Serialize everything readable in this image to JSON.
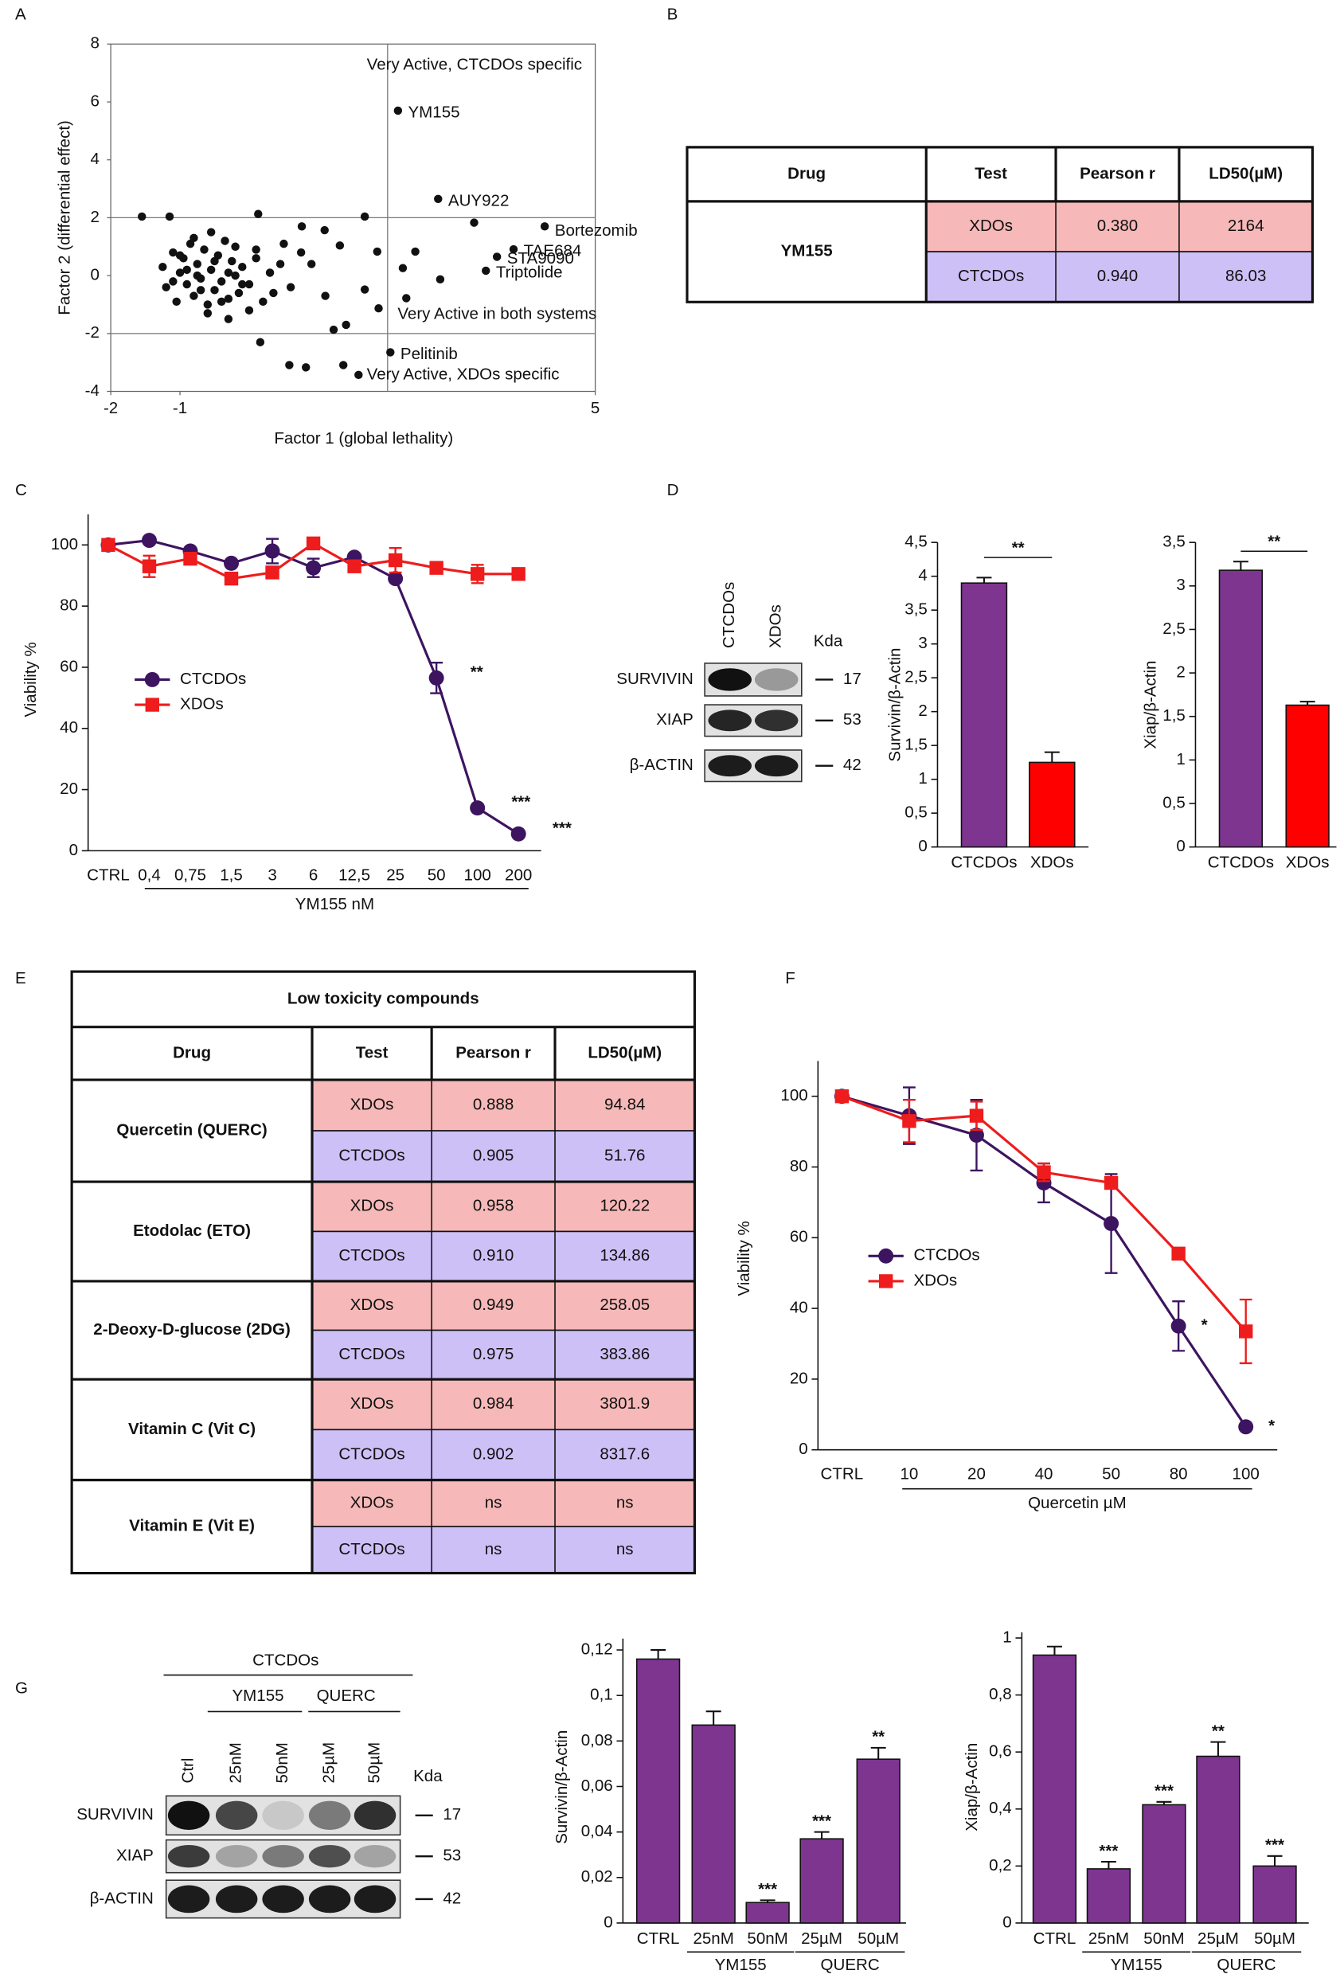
{
  "panel_labels": [
    "A",
    "B",
    "C",
    "D",
    "E",
    "F",
    "G"
  ],
  "chart_data": [
    {
      "type": "scatter",
      "x_label": "Factor 1 (global lethality)",
      "y_label": "Factor 2 (differential effect)",
      "xlim": [
        -2,
        5
      ],
      "ylim": [
        -4,
        8
      ],
      "xticks": [
        -2,
        -1,
        5
      ],
      "yticks": [
        -4,
        -2,
        0,
        2,
        4,
        6,
        8
      ],
      "reference_lines": {
        "x": [
          2
        ],
        "y": [
          -2,
          2
        ]
      },
      "region_labels": [
        "Very Active, CTCDOs specific",
        "Very Active in both systems",
        "Very Active, XDOs specific"
      ],
      "color": "#111111",
      "x": [
        -1.55,
        -1.15,
        0.13,
        1.67,
        3.25,
        0.76,
        1.09,
        1.31,
        1.85,
        2.4,
        2.22,
        2.76,
        1.67,
        1.87,
        1.4,
        1.22,
        1.36,
        0.82,
        0.58,
        0.16,
        -1.25,
        -1.2,
        -1.1,
        -1.05,
        -1.0,
        -0.95,
        -0.9,
        -0.85,
        -0.8,
        -0.75,
        -0.7,
        -0.65,
        -0.6,
        -0.55,
        -0.5,
        -0.45,
        -0.4,
        -0.35,
        -0.3,
        -0.25,
        -0.2,
        -0.15,
        -0.1,
        0.0,
        0.1,
        0.2,
        0.3,
        0.45,
        0.6,
        0.75,
        -1.1,
        -0.9,
        -0.7,
        -0.5,
        -0.3,
        -0.1,
        0.1,
        0.35,
        -0.8,
        -0.6,
        -0.4,
        -0.2,
        0.0,
        -1.0,
        -0.55,
        0.9,
        1.1,
        0.5,
        -0.3,
        -0.75,
        2.27,
        1.58
      ],
      "y": [
        2.04,
        2.04,
        2.13,
        2.04,
        1.83,
        1.7,
        1.57,
        1.04,
        0.83,
        0.83,
        0.26,
        -0.13,
        -0.48,
        -1.13,
        -1.7,
        -1.87,
        -3.09,
        -3.17,
        -3.09,
        -2.3,
        0.3,
        -0.4,
        0.8,
        -0.9,
        0.1,
        0.6,
        -0.3,
        1.1,
        -0.7,
        0.4,
        -0.1,
        0.9,
        -1.0,
        0.2,
        -0.5,
        0.7,
        -0.2,
        1.2,
        -0.8,
        0.5,
        0.0,
        -0.6,
        0.3,
        -0.3,
        0.6,
        -0.9,
        0.1,
        0.4,
        -0.4,
        0.8,
        -0.2,
        0.2,
        -0.5,
        0.5,
        0.1,
        -0.3,
        0.9,
        -0.6,
        1.3,
        -1.3,
        -0.9,
        1.0,
        -1.2,
        0.7,
        1.5,
        0.4,
        -0.7,
        1.1,
        -1.5,
        0.0,
        -0.78,
        -3.43
      ],
      "labeled_points": [
        {
          "label": "YM155",
          "x": 2.15,
          "y": 5.7
        },
        {
          "label": "AUY922",
          "x": 2.73,
          "y": 2.65
        },
        {
          "label": "Bortezomib",
          "x": 4.27,
          "y": 1.7
        },
        {
          "label": "TAE684",
          "x": 3.82,
          "y": 0.91
        },
        {
          "label": "STA9090",
          "x": 3.58,
          "y": 0.65
        },
        {
          "label": "Triptolide",
          "x": 3.42,
          "y": 0.17
        },
        {
          "label": "Pelitinib",
          "x": 2.04,
          "y": -2.65
        }
      ]
    },
    {
      "type": "line",
      "categories": [
        "CTRL",
        "0,4",
        "0,75",
        "1,5",
        "3",
        "6",
        "12,5",
        "25",
        "50",
        "100",
        "200"
      ],
      "x_group_label": "YM155 nM",
      "y_label": "Viability %",
      "ylim": [
        0,
        110
      ],
      "yticks": [
        0,
        20,
        40,
        60,
        80,
        100
      ],
      "series": [
        {
          "name": "CTCDOs",
          "color": "#3d1460",
          "marker": "circle",
          "values": [
            100,
            101.5,
            98,
            94,
            98,
            92.5,
            96,
            89,
            56.5,
            14,
            5.5
          ],
          "errors": [
            0,
            0,
            0,
            0,
            4,
            3,
            0,
            0,
            5,
            0,
            0
          ],
          "annotations": [
            null,
            null,
            null,
            null,
            null,
            null,
            null,
            null,
            "**",
            "***",
            "***"
          ]
        },
        {
          "name": "XDOs",
          "color": "#ee1c1c",
          "marker": "square",
          "values": [
            100,
            93,
            95.5,
            89,
            91,
            100.5,
            93,
            95,
            92.5,
            90.5,
            90.5
          ],
          "errors": [
            0,
            3.5,
            0,
            0,
            0,
            0,
            0,
            4,
            0,
            3,
            0
          ]
        }
      ]
    },
    {
      "type": "bar",
      "categories": [
        "CTCDOs",
        "XDOs"
      ],
      "y_label": "Survivin/β-Actin",
      "ylim": [
        0,
        4.5
      ],
      "yticks": [
        0,
        {
          "value": 0.5,
          "label": "0,5"
        },
        1,
        {
          "value": 1.5,
          "label": "1,5"
        },
        2,
        {
          "value": 2.5,
          "label": "2,5"
        },
        3,
        {
          "value": 3.5,
          "label": "3,5"
        },
        4,
        {
          "value": 4.5,
          "label": "4,5"
        }
      ],
      "colors": [
        "#7d3590",
        "#ff0000"
      ],
      "values": [
        3.9,
        1.25
      ],
      "errors": [
        0.08,
        0.15
      ],
      "bracket_annotation": "**"
    },
    {
      "type": "bar",
      "categories": [
        "CTCDOs",
        "XDOs"
      ],
      "y_label": "Xiap/β-Actin",
      "ylim": [
        0,
        3.5
      ],
      "yticks": [
        0,
        {
          "value": 0.5,
          "label": "0,5"
        },
        1,
        {
          "value": 1.5,
          "label": "1,5"
        },
        2,
        {
          "value": 2.5,
          "label": "2,5"
        },
        3,
        {
          "value": 3.5,
          "label": "3,5"
        }
      ],
      "colors": [
        "#7d3590",
        "#ff0000"
      ],
      "values": [
        3.18,
        1.63
      ],
      "errors": [
        0.1,
        0.04
      ],
      "bracket_annotation": "**"
    },
    {
      "type": "line",
      "categories": [
        "CTRL",
        "10",
        "20",
        "40",
        "50",
        "80",
        "100"
      ],
      "x_group_label": "Quercetin µM",
      "y_label": "Viability %",
      "ylim": [
        0,
        110
      ],
      "yticks": [
        0,
        20,
        40,
        60,
        80,
        100
      ],
      "series": [
        {
          "name": "CTCDOs",
          "color": "#3d1460",
          "marker": "circle",
          "values": [
            100,
            94.5,
            89,
            75.5,
            64,
            35,
            6.5
          ],
          "errors": [
            0,
            8,
            10,
            5.5,
            14,
            7,
            0
          ],
          "annotations": [
            null,
            null,
            null,
            null,
            null,
            "*",
            "*"
          ]
        },
        {
          "name": "XDOs",
          "color": "#ee1c1c",
          "marker": "square",
          "values": [
            100,
            93,
            94.5,
            78.5,
            75.5,
            55.5,
            33.5
          ],
          "errors": [
            0,
            6,
            4,
            2.5,
            0,
            0,
            9
          ]
        }
      ]
    },
    {
      "type": "bar",
      "categories": [
        "CTRL",
        "25nM",
        "50nM",
        "25µM",
        "50µM"
      ],
      "groups": [
        "YM155",
        "QUERC"
      ],
      "y_label": "Survivin/β-Actin",
      "ylim": [
        0,
        0.125
      ],
      "yticks": [
        0,
        {
          "value": 0.02,
          "label": "0,02"
        },
        {
          "value": 0.04,
          "label": "0,04"
        },
        {
          "value": 0.06,
          "label": "0,06"
        },
        {
          "value": 0.08,
          "label": "0,08"
        },
        {
          "value": 0.1,
          "label": "0,1"
        },
        {
          "value": 0.12,
          "label": "0,12"
        }
      ],
      "color": "#7d3590",
      "values": [
        0.116,
        0.087,
        0.009,
        0.037,
        0.072
      ],
      "errors": [
        0.004,
        0.006,
        0.001,
        0.003,
        0.005
      ],
      "annotations": [
        null,
        null,
        "***",
        "***",
        "**"
      ]
    },
    {
      "type": "bar",
      "categories": [
        "CTRL",
        "25nM",
        "50nM",
        "25µM",
        "50µM"
      ],
      "groups": [
        "YM155",
        "QUERC"
      ],
      "y_label": "Xiap/β-Actin",
      "ylim": [
        0,
        1.02
      ],
      "yticks": [
        0,
        {
          "value": 0.2,
          "label": "0,2"
        },
        {
          "value": 0.4,
          "label": "0,4"
        },
        {
          "value": 0.6,
          "label": "0,6"
        },
        {
          "value": 0.8,
          "label": "0,8"
        },
        1
      ],
      "color": "#7d3590",
      "values": [
        0.94,
        0.19,
        0.415,
        0.585,
        0.2
      ],
      "errors": [
        0.03,
        0.025,
        0.01,
        0.05,
        0.035
      ],
      "annotations": [
        null,
        "***",
        "***",
        "**",
        "***"
      ]
    }
  ],
  "table_b": {
    "header": [
      "Drug",
      "Test",
      "Pearson r",
      "LD50(µM)"
    ],
    "row_colors": [
      "#f6b8b8",
      "#cdc0f7"
    ],
    "groups": [
      {
        "drug": "YM155",
        "rows": [
          [
            "XDOs",
            "0.380",
            "2164"
          ],
          [
            "CTCDOs",
            "0.940",
            "86.03"
          ]
        ]
      }
    ]
  },
  "table_e": {
    "title": "Low toxicity compounds",
    "header": [
      "Drug",
      "Test",
      "Pearson r",
      "LD50(µM)"
    ],
    "row_colors": [
      "#f6b8b8",
      "#cdc0f7"
    ],
    "groups": [
      {
        "drug": "Quercetin (QUERC)",
        "rows": [
          [
            "XDOs",
            "0.888",
            "94.84"
          ],
          [
            "CTCDOs",
            "0.905",
            "51.76"
          ]
        ]
      },
      {
        "drug": "Etodolac (ETO)",
        "rows": [
          [
            "XDOs",
            "0.958",
            "120.22"
          ],
          [
            "CTCDOs",
            "0.910",
            "134.86"
          ]
        ]
      },
      {
        "drug": "2-Deoxy-D-glucose (2DG)",
        "rows": [
          [
            "XDOs",
            "0.949",
            "258.05"
          ],
          [
            "CTCDOs",
            "0.975",
            "383.86"
          ]
        ]
      },
      {
        "drug": "Vitamin C (Vit C)",
        "rows": [
          [
            "XDOs",
            "0.984",
            "3801.9"
          ],
          [
            "CTCDOs",
            "0.902",
            "8317.6"
          ]
        ]
      },
      {
        "drug": "Vitamin E (Vit E)",
        "rows": [
          [
            "XDOs",
            "ns",
            "ns"
          ],
          [
            "CTCDOs",
            "ns",
            "ns"
          ]
        ]
      }
    ]
  },
  "blot_d": {
    "lanes": [
      "CTCDOs",
      "XDOs"
    ],
    "unit_label": "Kda",
    "rows": [
      {
        "protein": "SURVIVIN",
        "kda": "17"
      },
      {
        "protein": "XIAP",
        "kda": "53"
      },
      {
        "protein": "β-ACTIN",
        "kda": "42"
      }
    ]
  },
  "blot_g": {
    "title": "CTCDOs",
    "groups": [
      "YM155",
      "QUERC"
    ],
    "lanes": [
      "Ctrl",
      "25nM",
      "50nM",
      "25µM",
      "50µM"
    ],
    "unit_label": "Kda",
    "rows": [
      {
        "protein": "SURVIVIN",
        "kda": "17"
      },
      {
        "protein": "XIAP",
        "kda": "53"
      },
      {
        "protein": "β-ACTIN",
        "kda": "42"
      }
    ]
  }
}
